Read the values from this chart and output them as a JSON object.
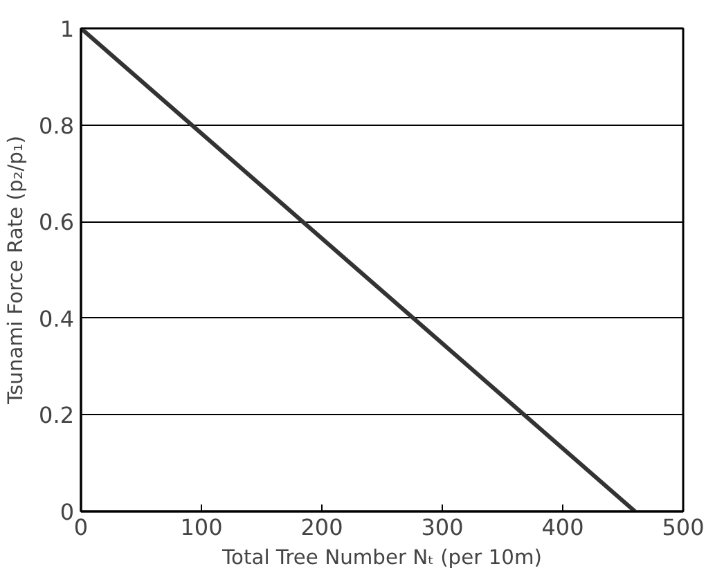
{
  "chart_data": {
    "type": "line",
    "xlabel": "Total Tree Number Nₜ (per 10m)",
    "ylabel": "Tsunami Force Rate (p₂/p₁)",
    "x": [
      0,
      460
    ],
    "series": [
      {
        "color": "#333333",
        "values": [
          1,
          0
        ]
      }
    ],
    "xlim": [
      0,
      500
    ],
    "xticks": [
      0,
      100,
      200,
      300,
      400,
      500
    ],
    "ylim": [
      0,
      1
    ],
    "yticks": [
      0,
      0.2,
      0.4,
      0.6,
      0.8,
      1
    ],
    "grid": "y",
    "marker": "none",
    "line_style": "solid"
  }
}
